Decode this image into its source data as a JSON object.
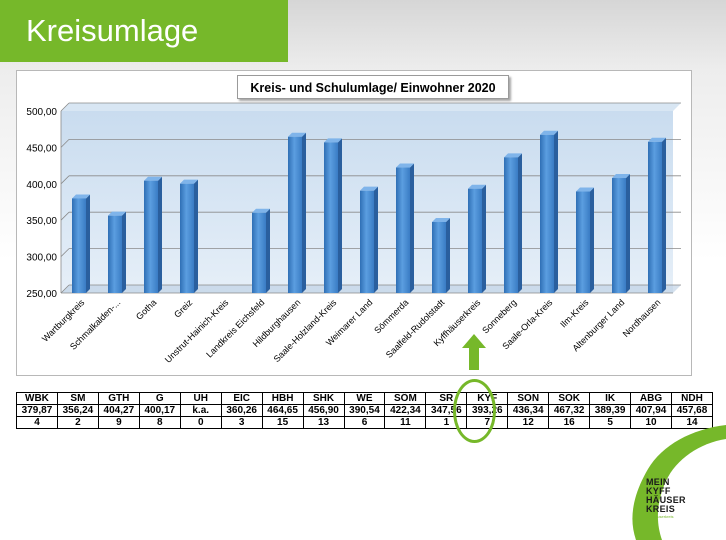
{
  "slide": {
    "title": "Kreisumlage"
  },
  "chart_data": {
    "type": "bar",
    "title": "Kreis- und Schulumlage/ Einwohner 2020",
    "categories": [
      "Wartburgkreis",
      "Schmalkalden-...",
      "Gotha",
      "Greiz",
      "Unstrut-Hainich-Kreis",
      "Landkreis Eichsfeld",
      "Hildburghausen",
      "Saale-Holzland-Kreis",
      "Weimarer Land",
      "Sömmerda",
      "Saalfeld-Rudolstadt",
      "Kyffhäuserkreis",
      "Sonneberg",
      "Saale-Orla-Kreis",
      "Ilm-Kreis",
      "Altenburger Land",
      "Nordhausen"
    ],
    "values": [
      379.87,
      356.24,
      404.27,
      400.17,
      null,
      360.26,
      464.65,
      456.9,
      390.54,
      422.34,
      347.56,
      393.26,
      436.34,
      467.32,
      389.39,
      407.94,
      457.68
    ],
    "ylim": [
      250,
      500
    ],
    "yticks": [
      "250,00",
      "300,00",
      "350,00",
      "400,00",
      "450,00",
      "500,00"
    ],
    "grid": true,
    "bar_color": "#4a8fd4"
  },
  "table": {
    "codes": [
      "WBK",
      "SM",
      "GTH",
      "G",
      "UH",
      "EIC",
      "HBH",
      "SHK",
      "WE",
      "SÖM",
      "SR",
      "KYF",
      "SON",
      "SOK",
      "IK",
      "ABG",
      "NDH"
    ],
    "values": [
      "379,87",
      "356,24",
      "404,27",
      "400,17",
      "k.a.",
      "360,26",
      "464,65",
      "456,90",
      "390,54",
      "422,34",
      "347,56",
      "393,26",
      "436,34",
      "467,32",
      "389,39",
      "407,94",
      "457,68"
    ],
    "ranks": [
      "4",
      "2",
      "9",
      "8",
      "0",
      "3",
      "15",
      "13",
      "6",
      "11",
      "1",
      "7",
      "12",
      "16",
      "5",
      "10",
      "14"
    ]
  },
  "logo": {
    "lines": [
      "MEIN",
      "KYFF",
      "HÄUSER",
      "KREIS"
    ],
    "tagline": "Kyffhäuserkreis",
    "accent": "#76b82a"
  }
}
